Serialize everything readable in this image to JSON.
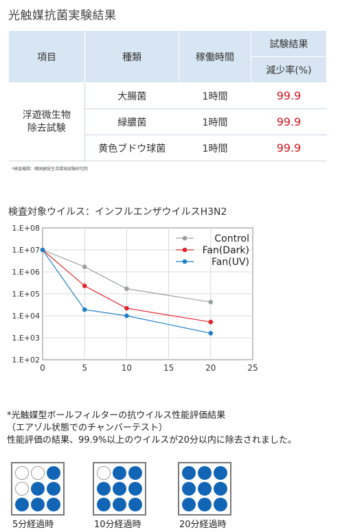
{
  "heading": "光触媒抗菌実験結果",
  "table": {
    "headers": {
      "item": "項目",
      "type": "種類",
      "time": "稼働時間",
      "result": "試験結果",
      "result_sub": "減少率(%)"
    },
    "row_label_line1": "浮遊微生物",
    "row_label_line2": "除去試験",
    "rows": [
      {
        "type": "大腸菌",
        "time": "1時間",
        "value": "99.9"
      },
      {
        "type": "緑膿菌",
        "time": "1時間",
        "value": "99.9"
      },
      {
        "type": "黄色ブドウ球菌",
        "time": "1時間",
        "value": "99.9"
      }
    ]
  },
  "note": "*検査機関：韓国建設生活環境試験研究院",
  "chart_title": "検査対象ウイルス：インフルエンザウイルスH3N2",
  "chart_data": {
    "type": "line",
    "x": [
      0,
      5,
      10,
      20
    ],
    "xlim": [
      0,
      25
    ],
    "xticks": [
      "0",
      "5",
      "10",
      "15",
      "20",
      "25"
    ],
    "yscale": "log",
    "ylim": [
      100,
      100000000
    ],
    "yticks": [
      "1.E+08",
      "1.E+07",
      "1.E+06",
      "1.E+05",
      "1.E+04",
      "1.E+03",
      "1.E+02"
    ],
    "grid": true,
    "legend": "top-right",
    "series": [
      {
        "name": "Control",
        "color": "#9aa09d",
        "values": [
          10000000,
          1700000,
          170000,
          42000
        ]
      },
      {
        "name": "Fan(Dark)",
        "color": "#e0242c",
        "values": [
          10000000,
          230000,
          22000,
          5200
        ]
      },
      {
        "name": "Fan(UV)",
        "color": "#1f7fc4",
        "values": [
          10000000,
          19000,
          10000,
          1600
        ]
      }
    ]
  },
  "footer": {
    "line1": "*光触媒型ボールフィルターの抗ウイルス性能評価結果",
    "line2": "（エアゾル状態でのチャンバーテスト）",
    "line3": "性能評価の結果、99.9%以上のウイルスが20分以内に除去されました。"
  },
  "panels": [
    {
      "label": "5分経過時",
      "filled": [
        false,
        false,
        true,
        false,
        true,
        true,
        true,
        true,
        true
      ]
    },
    {
      "label": "10分経過時",
      "filled": [
        false,
        true,
        true,
        true,
        true,
        true,
        true,
        true,
        true
      ]
    },
    {
      "label": "20分経過時",
      "filled": [
        true,
        true,
        true,
        true,
        true,
        true,
        true,
        true,
        true
      ]
    }
  ]
}
